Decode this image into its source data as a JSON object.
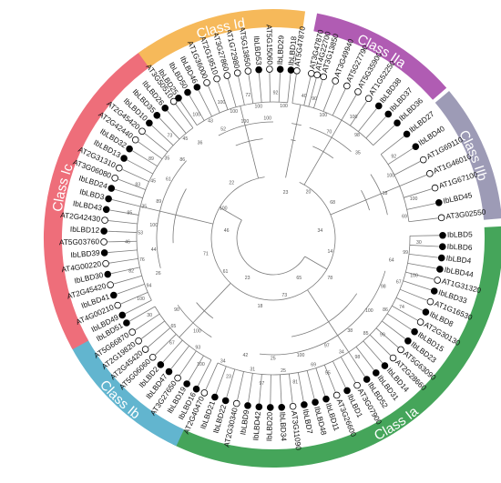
{
  "tree": {
    "marker_colors": {
      "ibLBD": "#000000",
      "arabidopsis": "#ffffff"
    },
    "line_color": "#7a7a7a",
    "classes": [
      {
        "name": "Class IIa",
        "color": "#b05cb3",
        "leaves": [
          "AT3G47870",
          "AT3G13850",
          "AT3G49940",
          "AT5G27790",
          "AT5G35900",
          "AT1G52250",
          "IbLBD38",
          "IbLBD37",
          "IbLBD36"
        ],
        "bootstrap": [
          "90",
          "100",
          "70",
          "100",
          "98",
          "35"
        ]
      },
      {
        "name": "Class IIb",
        "color": "#9d9bb6",
        "leaves": [
          "IbLBD27",
          "IbLBD40",
          "AT1G69110",
          "AT1G46010",
          "AT1G67100",
          "IbLBD45",
          "AT3G02550"
        ],
        "bootstrap": [
          "92",
          "100",
          "18",
          "100",
          "69"
        ]
      },
      {
        "name": "Class Ia",
        "color": "#45a55a",
        "leaves": [
          "IbLBD5",
          "IbLBD6",
          "IbLBD4",
          "IbLBD44",
          "AT1G31320",
          "IbLBD33",
          "AT1G16530",
          "IbLBD8",
          "AT2G30130",
          "IbLBD15",
          "IbLBD23",
          "AT5G63090",
          "AT2G28660",
          "IbLBD14",
          "IbLBD31",
          "IbLBD52",
          "AT3G07900",
          "IbLBD1",
          "AT3G26600",
          "IbLBD11",
          "IbLBD48",
          "IbLBD7",
          "AT3G11090",
          "IbLBD34",
          "IbLBD20",
          "IbLBD42",
          "IbLBD9",
          "AT2G30340",
          "IbLBD22",
          "IbLBD21",
          "AT2G40470"
        ],
        "bootstrap": [
          "30",
          "99",
          "64",
          "100",
          "67",
          "98",
          "74",
          "86",
          "100",
          "99",
          "85",
          "38",
          "98",
          "34",
          "97",
          "55",
          "69",
          "100",
          "81",
          "25",
          "25",
          "97",
          "31",
          "42",
          "23",
          "34"
        ]
      },
      {
        "name": "Class Ib",
        "color": "#62b5cf",
        "leaves": [
          "IbLBD16",
          "IbLBD19",
          "AT3G27650",
          "IbLBD47",
          "IbLBD2",
          "AT5G06060",
          "AT2G45420",
          "AT2G19820",
          "AT5G66870",
          "IbLBD51"
        ],
        "bootstrap": [
          "100",
          "93",
          "100",
          "67",
          "65",
          "90",
          "30"
        ]
      },
      {
        "name": "Class Ic",
        "color": "#ee6e7a",
        "leaves": [
          "IbLBD49",
          "AT4G00210",
          "IbLBD41",
          "AT2G45420",
          "IbLBD30",
          "AT4G00220",
          "IbLBD39",
          "AT5G03760",
          "IbLBD12",
          "AT2G42430",
          "IbLBD43",
          "IbLBD3",
          "IbLBD24",
          "AT3G06080",
          "AT2G31310",
          "IbLBD13",
          "IbLBD32",
          "AT2G42440",
          "AT2G45420",
          "IbLBD10",
          "IbLBD35",
          "IbLBD26",
          "AT3G50510"
        ],
        "bootstrap": [
          "100",
          "94",
          "26",
          "82",
          "76",
          "44",
          "46",
          "53",
          "100",
          "95",
          "35",
          "89",
          "83",
          "45",
          "61",
          "89",
          "35",
          "86",
          "73",
          "45",
          "36"
        ]
      },
      {
        "name": "Class Id",
        "color": "#f6b95a",
        "leaves": [
          "IbLBD25",
          "IbLBD50",
          "IbLBD46",
          "AT1G36000",
          "AT2G19510",
          "AT3G27860",
          "AT1G72980",
          "AT5G13850",
          "IbLBD53",
          "AT5G15060",
          "IbLBD29",
          "IbLBD18"
        ],
        "bootstrap": [
          "100",
          "43",
          "52",
          "100",
          "100",
          "100",
          "72",
          "100",
          "100",
          "92",
          "100"
        ]
      },
      {
        "name": "",
        "color": "#f6b95a",
        "leaves": [
          "AT5G47870",
          "AT4G22700"
        ],
        "bootstrap": [
          "40"
        ]
      }
    ],
    "internal_bootstrap": [
      "23",
      "20",
      "68",
      "34",
      "14",
      "78",
      "65",
      "73",
      "18",
      "23",
      "61",
      "71",
      "46",
      "100",
      "22"
    ]
  }
}
